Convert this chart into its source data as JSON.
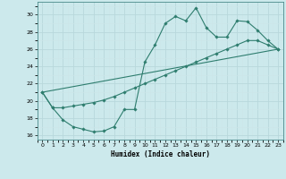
{
  "xlabel": "Humidex (Indice chaleur)",
  "xlim": [
    -0.5,
    23.5
  ],
  "ylim": [
    15.5,
    31.5
  ],
  "xticks": [
    0,
    1,
    2,
    3,
    4,
    5,
    6,
    7,
    8,
    9,
    10,
    11,
    12,
    13,
    14,
    15,
    16,
    17,
    18,
    19,
    20,
    21,
    22,
    23
  ],
  "yticks": [
    16,
    18,
    20,
    22,
    24,
    26,
    28,
    30
  ],
  "bg_color": "#cce9ec",
  "line_color": "#2e7d6e",
  "grid_major_color": "#b8d8dc",
  "grid_minor_color": "#cde6e9",
  "line1_x": [
    0,
    1,
    2,
    3,
    4,
    5,
    6,
    7,
    8,
    9,
    10,
    11,
    12,
    13,
    14,
    15,
    16,
    17,
    18,
    19,
    20,
    21,
    22,
    23
  ],
  "line1_y": [
    21.0,
    19.2,
    17.8,
    17.0,
    16.7,
    16.4,
    16.5,
    17.0,
    19.0,
    19.0,
    24.5,
    26.5,
    29.0,
    29.8,
    29.3,
    30.8,
    28.5,
    27.4,
    27.4,
    29.3,
    29.2,
    28.2,
    27.0,
    26.0
  ],
  "line2_x": [
    0,
    1,
    2,
    3,
    4,
    5,
    6,
    7,
    8,
    9,
    10,
    11,
    12,
    13,
    14,
    15,
    16,
    17,
    18,
    19,
    20,
    21,
    22,
    23
  ],
  "line2_y": [
    21.0,
    19.2,
    19.2,
    19.4,
    19.6,
    19.8,
    20.1,
    20.5,
    21.0,
    21.5,
    22.0,
    22.5,
    23.0,
    23.5,
    24.0,
    24.5,
    25.0,
    25.5,
    26.0,
    26.5,
    27.0,
    27.0,
    26.5,
    26.0
  ],
  "line3_x": [
    0,
    23
  ],
  "line3_y": [
    21.0,
    26.0
  ]
}
